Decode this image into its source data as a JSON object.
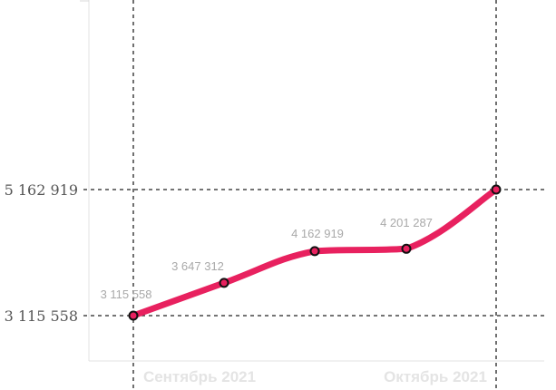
{
  "chart_data": {
    "type": "line",
    "title": "",
    "xlabel": "",
    "ylabel": "",
    "x_tick_labels": [
      "Сентябрь 2021",
      "Октябрь 2021"
    ],
    "y_tick_labels": [
      "3 115 558",
      "5 162 919"
    ],
    "y_ticks": [
      3115558,
      5162919
    ],
    "ylim": [
      2800000,
      8000000
    ],
    "grid": true,
    "legend": "none",
    "series": [
      {
        "values": [
          3115558,
          3647312,
          4162919,
          4201287,
          5162919
        ],
        "labels": [
          "3 115 558",
          "3 647 312",
          "4 162 919",
          "4 201 287",
          ""
        ],
        "color": "#e8215f"
      }
    ],
    "marker_fill": "#e8215f",
    "marker_stroke": "#111111"
  }
}
